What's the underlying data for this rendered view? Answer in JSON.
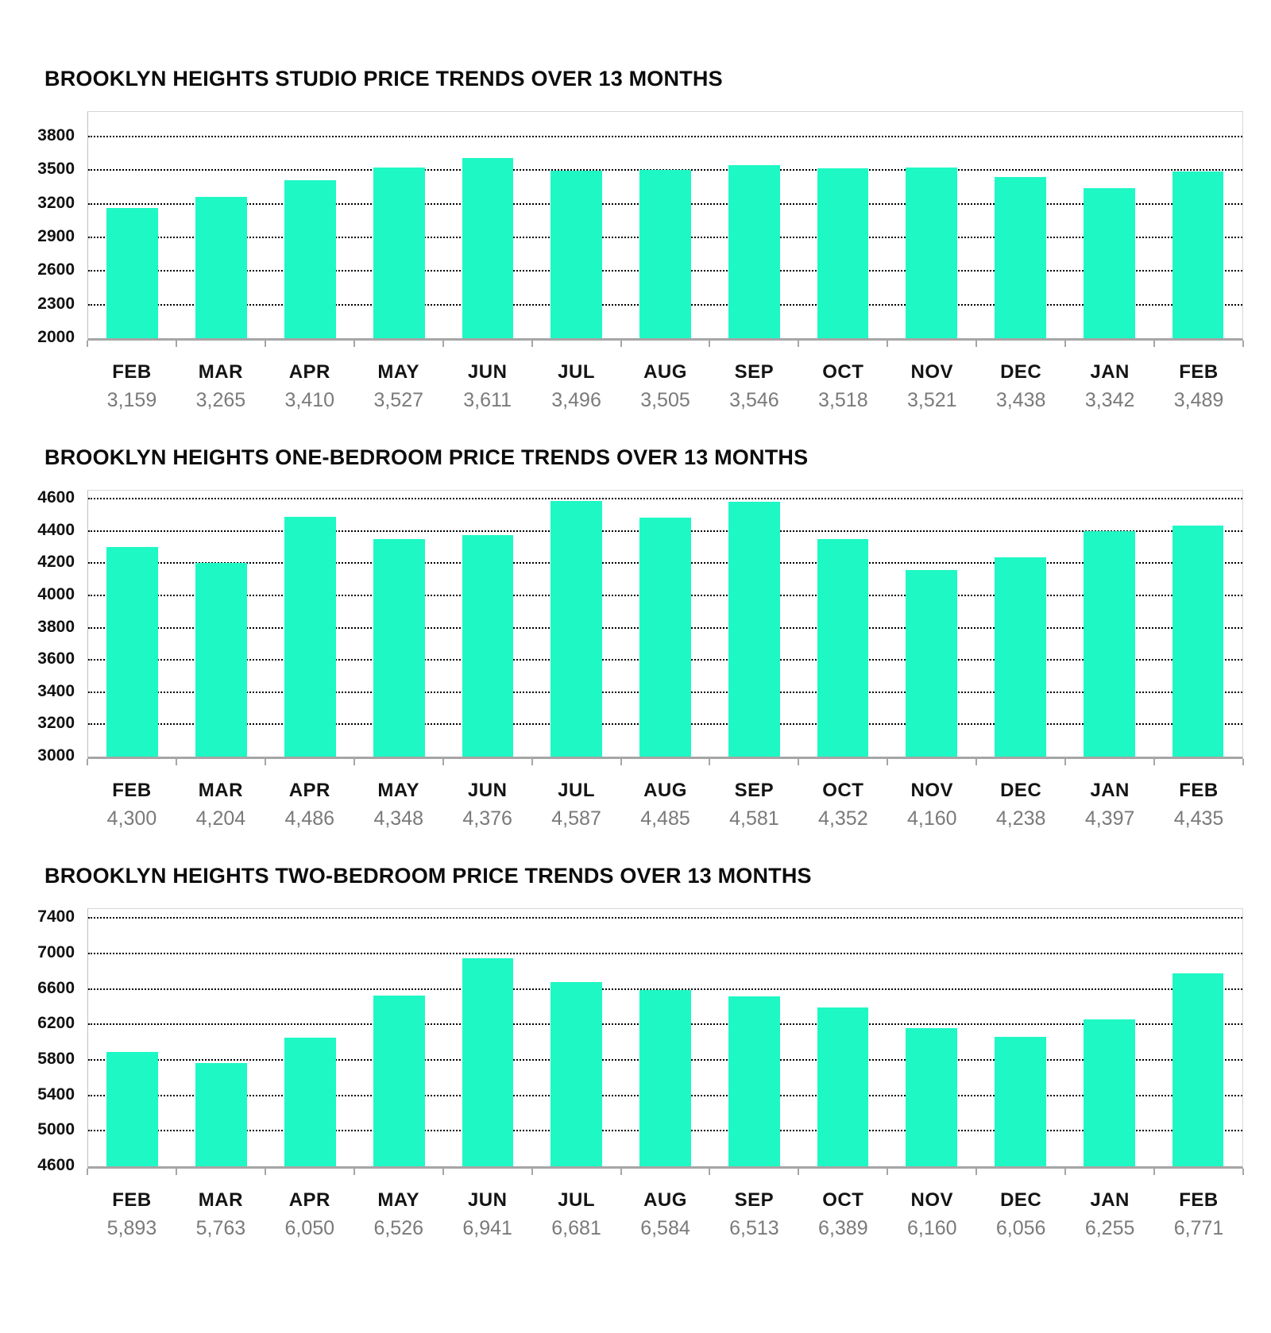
{
  "style": {
    "background": "#ffffff",
    "bar_color": "#1ef8c4",
    "grid_color": "#000000",
    "axis_color": "#a6a6a6",
    "title_color": "#0c0c0c",
    "month_label_color": "#141414",
    "value_label_color": "#7a7a7a"
  },
  "chart_data": [
    {
      "type": "bar",
      "title": "BROOKLYN HEIGHTS STUDIO PRICE TRENDS OVER 13 MONTHS",
      "categories": [
        "FEB",
        "MAR",
        "APR",
        "MAY",
        "JUN",
        "JUL",
        "AUG",
        "SEP",
        "OCT",
        "NOV",
        "DEC",
        "JAN",
        "FEB"
      ],
      "values": [
        3159,
        3265,
        3410,
        3527,
        3611,
        3496,
        3505,
        3546,
        3518,
        3521,
        3438,
        3342,
        3489
      ],
      "values_formatted": [
        "3,159",
        "3,265",
        "3,410",
        "3,527",
        "3,611",
        "3,496",
        "3,505",
        "3,546",
        "3,518",
        "3,521",
        "3,438",
        "3,342",
        "3,489"
      ],
      "yticks": [
        3800,
        3500,
        3200,
        2900,
        2600,
        2300,
        2000
      ],
      "ylim": [
        2000,
        4020
      ],
      "xlabel": "",
      "ylabel": "",
      "grid": "dotted-horizontal",
      "legend": "none"
    },
    {
      "type": "bar",
      "title": "BROOKLYN HEIGHTS ONE-BEDROOM PRICE TRENDS OVER 13 MONTHS",
      "categories": [
        "FEB",
        "MAR",
        "APR",
        "MAY",
        "JUN",
        "JUL",
        "AUG",
        "SEP",
        "OCT",
        "NOV",
        "DEC",
        "JAN",
        "FEB"
      ],
      "values": [
        4300,
        4204,
        4486,
        4348,
        4376,
        4587,
        4485,
        4581,
        4352,
        4160,
        4238,
        4397,
        4435
      ],
      "values_formatted": [
        "4,300",
        "4,204",
        "4,486",
        "4,348",
        "4,376",
        "4,587",
        "4,485",
        "4,581",
        "4,352",
        "4,160",
        "4,238",
        "4,397",
        "4,435"
      ],
      "yticks": [
        4600,
        4400,
        4200,
        4000,
        3800,
        3600,
        3400,
        3200,
        3000
      ],
      "ylim": [
        3000,
        4650
      ],
      "xlabel": "",
      "ylabel": "",
      "grid": "dotted-horizontal",
      "legend": "none"
    },
    {
      "type": "bar",
      "title": "BROOKLYN HEIGHTS TWO-BEDROOM PRICE TRENDS OVER 13 MONTHS",
      "categories": [
        "FEB",
        "MAR",
        "APR",
        "MAY",
        "JUN",
        "JUL",
        "AUG",
        "SEP",
        "OCT",
        "NOV",
        "DEC",
        "JAN",
        "FEB"
      ],
      "values": [
        5893,
        5763,
        6050,
        6526,
        6941,
        6681,
        6584,
        6513,
        6389,
        6160,
        6056,
        6255,
        6771
      ],
      "values_formatted": [
        "5,893",
        "5,763",
        "6,050",
        "6,526",
        "6,941",
        "6,681",
        "6,584",
        "6,513",
        "6,389",
        "6,160",
        "6,056",
        "6,255",
        "6,771"
      ],
      "yticks": [
        7400,
        7000,
        6600,
        6200,
        5800,
        5400,
        5000,
        4600
      ],
      "ylim": [
        4600,
        7500
      ],
      "xlabel": "",
      "ylabel": "",
      "grid": "dotted-horizontal",
      "legend": "none"
    }
  ]
}
